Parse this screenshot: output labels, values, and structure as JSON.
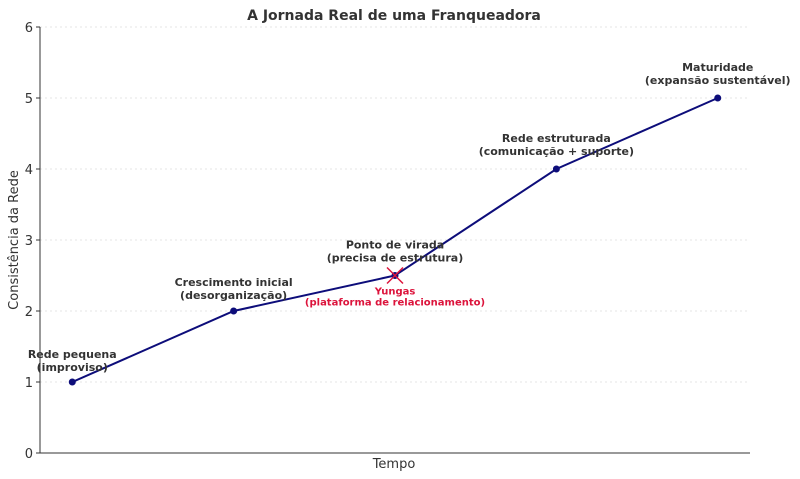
{
  "chart_data": {
    "type": "line",
    "title": "A Jornada Real de uma Franqueadora",
    "xlabel": "Tempo",
    "ylabel": "Consistência da Rede",
    "xlim": [
      0.8,
      5.2
    ],
    "ylim": [
      0,
      6
    ],
    "yticks": [
      "0",
      "1",
      "2",
      "3",
      "4",
      "5",
      "6"
    ],
    "grid": true,
    "x": [
      1,
      2,
      3,
      4,
      5
    ],
    "y": [
      1,
      2,
      2.5,
      4,
      5
    ],
    "line_color": "#0d0d7a",
    "annotations": [
      {
        "lines": [
          "Rede pequena",
          "(improviso)"
        ]
      },
      {
        "lines": [
          "Crescimento inicial",
          "(desorganização)"
        ]
      },
      {
        "lines": [
          "Ponto de virada",
          "(precisa de estrutura)"
        ]
      },
      {
        "lines": [
          "Rede estruturada",
          "(comunicação + suporte)"
        ]
      },
      {
        "lines": [
          "Maturidade",
          "(expansão sustentável)"
        ]
      }
    ],
    "highlight": {
      "x": 3,
      "y": 2.5,
      "color": "#dc143c",
      "lines": [
        "Yungas",
        "(plataforma de relacionamento)"
      ]
    }
  }
}
